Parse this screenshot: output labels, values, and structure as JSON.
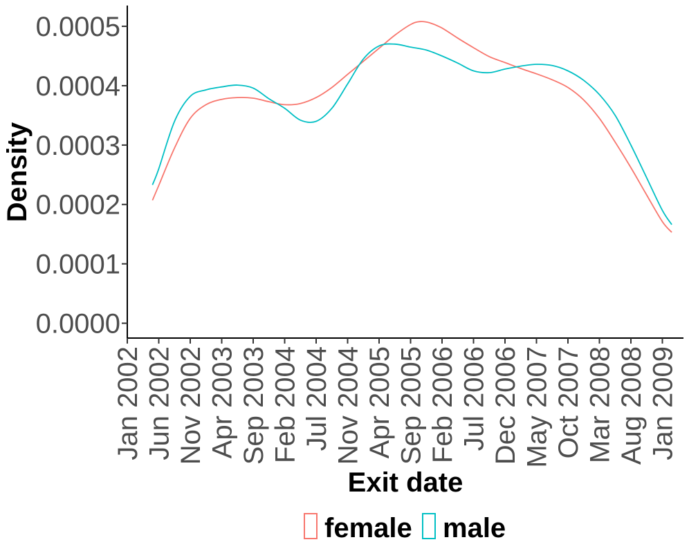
{
  "chart_data": {
    "type": "line",
    "xlabel": "Exit date",
    "ylabel": "Density",
    "x_tick_labels": [
      "Jan 2002",
      "Jun 2002",
      "Nov 2002",
      "Apr 2003",
      "Sep 2003",
      "Feb 2004",
      "Jul 2004",
      "Nov 2004",
      "Apr 2005",
      "Sep 2005",
      "Feb 2006",
      "Jul 2006",
      "Dec 2006",
      "May 2007",
      "Oct 2007",
      "Mar 2008",
      "Aug 2008",
      "Jan 2009"
    ],
    "y_tick_labels": [
      "0.0000",
      "0.0001",
      "0.0002",
      "0.0003",
      "0.0004",
      "0.0005"
    ],
    "y_ticks": [
      0,
      0.0001,
      0.0002,
      0.0003,
      0.0004,
      0.0005
    ],
    "ylim": [
      -2.5e-05,
      0.000535
    ],
    "x_range_tick_index": [
      0,
      17
    ],
    "grid": false,
    "legend": {
      "position": "bottom"
    },
    "series": [
      {
        "name": "female",
        "color": "#F8766D",
        "x_tick_index": [
          0.8,
          1.0,
          1.5,
          2.0,
          2.5,
          3.0,
          3.5,
          4.0,
          4.5,
          5.0,
          5.5,
          6.0,
          6.5,
          7.0,
          7.5,
          8.0,
          8.5,
          9.0,
          9.3,
          9.6,
          10.0,
          10.5,
          11.0,
          11.5,
          12.0,
          12.5,
          13.0,
          13.5,
          14.0,
          14.5,
          15.0,
          15.5,
          16.0,
          16.5,
          17.0,
          17.3
        ],
        "values": [
          0.000207,
          0.000232,
          0.000295,
          0.000345,
          0.000368,
          0.000377,
          0.00038,
          0.000379,
          0.000373,
          0.000368,
          0.00037,
          0.00038,
          0.000397,
          0.000419,
          0.000441,
          0.000463,
          0.000485,
          0.000503,
          0.000508,
          0.000506,
          0.000497,
          0.00048,
          0.000464,
          0.000449,
          0.000439,
          0.000429,
          0.00042,
          0.00041,
          0.000397,
          0.000376,
          0.000345,
          0.000305,
          0.000262,
          0.000216,
          0.000171,
          0.000153
        ]
      },
      {
        "name": "male",
        "color": "#00BFC4",
        "x_tick_index": [
          0.8,
          1.0,
          1.5,
          2.0,
          2.5,
          3.0,
          3.5,
          4.0,
          4.5,
          5.0,
          5.5,
          6.0,
          6.5,
          7.0,
          7.5,
          8.0,
          8.5,
          9.0,
          9.5,
          10.0,
          10.5,
          11.0,
          11.5,
          12.0,
          12.5,
          13.0,
          13.5,
          14.0,
          14.5,
          15.0,
          15.5,
          16.0,
          16.5,
          17.0,
          17.3
        ],
        "values": [
          0.000233,
          0.00026,
          0.00034,
          0.000382,
          0.000393,
          0.000398,
          0.000401,
          0.000396,
          0.000378,
          0.000362,
          0.000342,
          0.00034,
          0.000362,
          0.000403,
          0.000445,
          0.000467,
          0.00047,
          0.000465,
          0.00046,
          0.00045,
          0.000438,
          0.000425,
          0.000422,
          0.000428,
          0.000433,
          0.000436,
          0.000434,
          0.000425,
          0.000409,
          0.000385,
          0.00035,
          0.0003,
          0.000245,
          0.00019,
          0.000166
        ]
      }
    ]
  }
}
